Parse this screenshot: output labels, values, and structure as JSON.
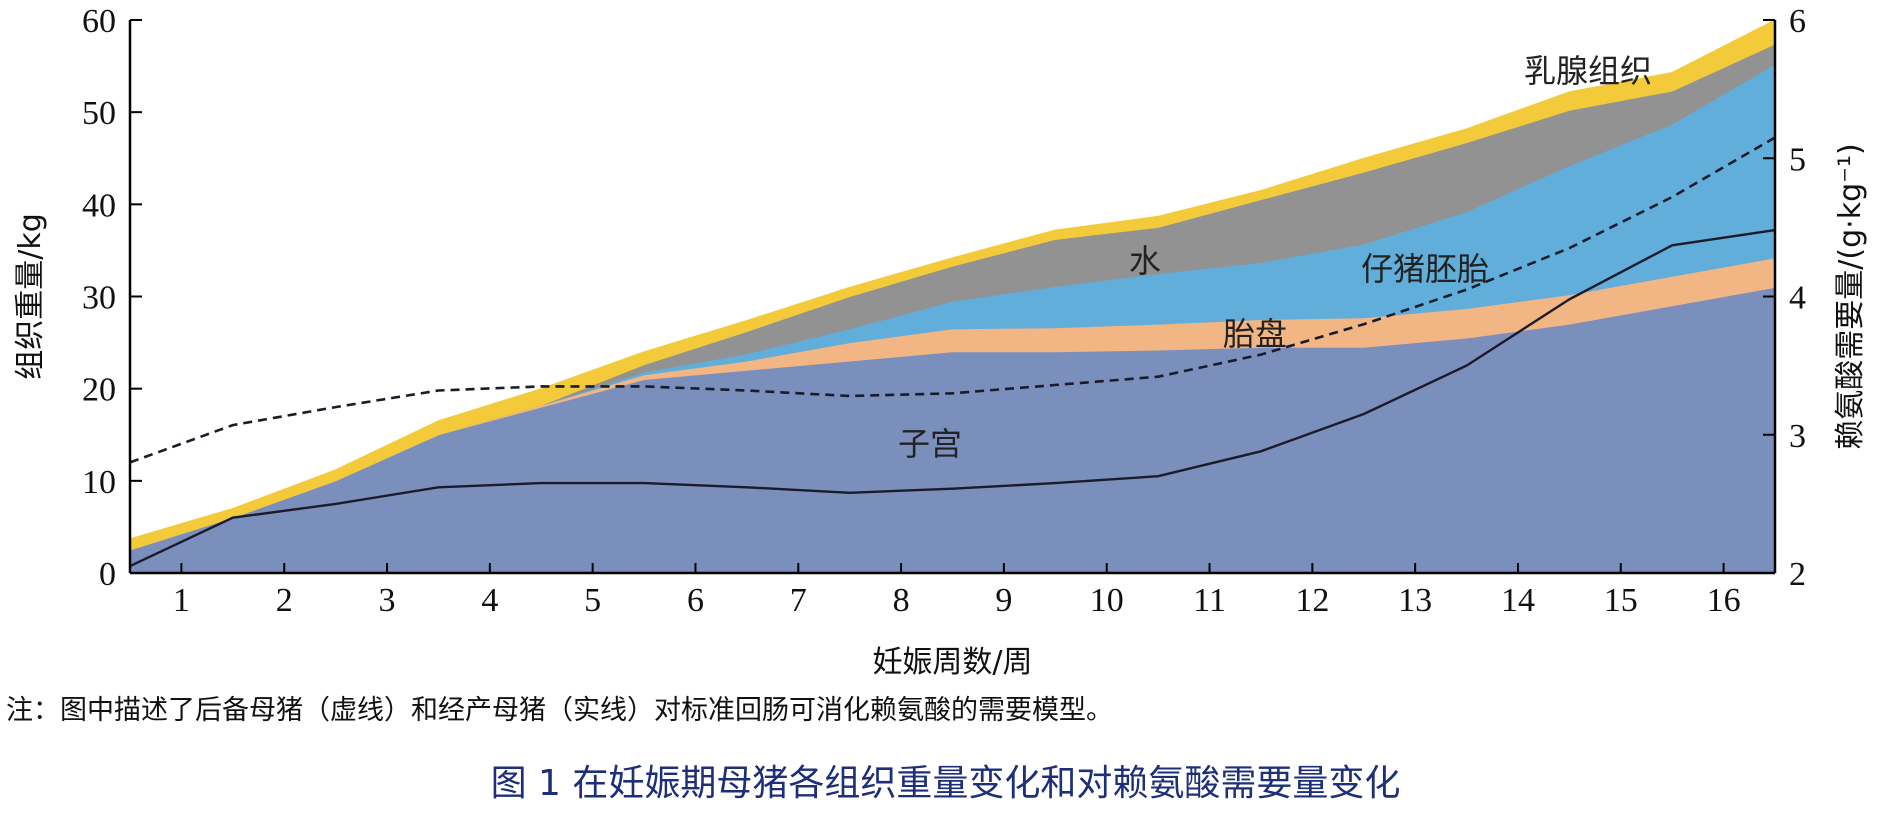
{
  "chart_data": {
    "type": "area",
    "x": [
      0.5,
      1.5,
      2.5,
      3.5,
      4.5,
      5.5,
      6.5,
      7.5,
      8.5,
      9.5,
      10.5,
      11.5,
      12.5,
      13.5,
      14.5,
      15.5,
      16.5
    ],
    "xticks": [
      1,
      2,
      3,
      4,
      5,
      6,
      7,
      8,
      9,
      10,
      11,
      12,
      13,
      14,
      15,
      16
    ],
    "xlabel": "妊娠周数/周",
    "ylabel": "组织重量/kg",
    "ylabel_right": "赖氨酸需要量/(g·kg⁻¹)",
    "ylim": [
      0,
      60
    ],
    "yticks": [
      0,
      10,
      20,
      30,
      40,
      50,
      60
    ],
    "ylim_right": [
      2,
      6
    ],
    "yticks_right": [
      2,
      3,
      4,
      5,
      6
    ],
    "stacked_series": [
      {
        "name": "子宫",
        "color": "#7b8fbd",
        "values": [
          2.5,
          6.0,
          10.0,
          15.0,
          18.0,
          21.0,
          22.0,
          23.0,
          24.0,
          24.0,
          24.2,
          24.5,
          24.5,
          25.5,
          27.0,
          29.0,
          31.0
        ]
      },
      {
        "name": "胎盘",
        "color": "#f2b584",
        "values": [
          0,
          0,
          0,
          0,
          0.2,
          0.5,
          1.0,
          2.0,
          2.5,
          2.6,
          2.8,
          3.0,
          3.2,
          3.2,
          3.2,
          3.2,
          3.2
        ]
      },
      {
        "name": "仔猪胚胎",
        "color": "#62aedb",
        "values": [
          0,
          0,
          0,
          0,
          0,
          0.3,
          0.8,
          1.5,
          3.0,
          4.5,
          5.5,
          6.2,
          8.0,
          10.5,
          14.0,
          16.5,
          21.0
        ]
      },
      {
        "name": "水",
        "color": "#929292",
        "values": [
          0,
          0,
          0,
          0,
          0,
          0.8,
          2.4,
          3.5,
          3.8,
          5.1,
          5.0,
          6.8,
          7.8,
          7.5,
          6.0,
          3.6,
          2.2
        ]
      },
      {
        "name": "乳腺组织",
        "color": "#f2ca3a",
        "values": [
          1.2,
          1.0,
          1.2,
          1.5,
          1.8,
          1.4,
          1.2,
          1.0,
          0.9,
          1.0,
          1.2,
          1.0,
          1.5,
          1.5,
          2.0,
          2.0,
          2.6
        ]
      }
    ],
    "lines": [
      {
        "axis": "right",
        "style": "dashed",
        "values": [
          2.8,
          3.07,
          3.2,
          3.32,
          3.35,
          3.35,
          3.32,
          3.28,
          3.3,
          3.36,
          3.42,
          3.58,
          3.8,
          4.05,
          4.35,
          4.72,
          5.15
        ]
      },
      {
        "axis": "right",
        "style": "solid",
        "values": [
          2.05,
          2.4,
          2.5,
          2.62,
          2.65,
          2.65,
          2.62,
          2.58,
          2.61,
          2.65,
          2.7,
          2.88,
          3.15,
          3.5,
          3.98,
          4.37,
          4.48
        ]
      }
    ],
    "region_labels": [
      "子宫",
      "胎盘",
      "仔猪胚胎",
      "水",
      "乳腺组织"
    ]
  },
  "note": "注：图中描述了后备母猪（虚线）和经产母猪（实线）对标准回肠可消化赖氨酸的需要模型。",
  "caption": "图 1  在妊娠期母猪各组织重量变化和对赖氨酸需要量变化"
}
